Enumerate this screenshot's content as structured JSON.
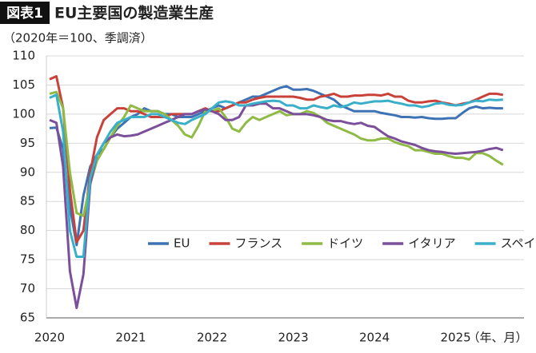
{
  "chart_data": {
    "type": "line",
    "figure_label": "図表1",
    "title": "EU主要国の製造業生産",
    "subtitle": "（2020年＝100、季調済）",
    "x_label": "（年、月）",
    "categories": [
      "2020",
      null,
      null,
      null,
      null,
      null,
      null,
      null,
      null,
      null,
      null,
      null,
      "2021",
      null,
      null,
      null,
      null,
      null,
      null,
      null,
      null,
      null,
      null,
      null,
      "2022",
      null,
      null,
      null,
      null,
      null,
      null,
      null,
      null,
      null,
      null,
      null,
      "2023",
      null,
      null,
      null,
      null,
      null,
      null,
      null,
      null,
      null,
      null,
      null,
      "2024",
      null,
      null,
      null,
      null,
      null,
      null,
      null,
      null,
      null,
      null,
      null,
      "2025",
      null,
      null,
      null,
      null,
      null,
      null,
      null
    ],
    "ylim": [
      65,
      110
    ],
    "yticks": [
      65,
      70,
      75,
      80,
      85,
      90,
      95,
      100,
      105,
      110
    ],
    "grid": true,
    "series": [
      {
        "name": "EU",
        "color": "#3d72b4",
        "values": [
          97.6,
          97.7,
          94,
          84,
          77.5,
          86,
          91,
          93,
          94,
          96,
          97.5,
          98.5,
          99.5,
          100,
          101,
          100.5,
          100.5,
          100,
          100,
          99.5,
          99.5,
          99.5,
          100,
          100.5,
          101,
          101.5,
          101,
          101.5,
          102,
          102.5,
          103,
          103,
          103.5,
          104,
          104.5,
          104.8,
          104.2,
          104.2,
          104.3,
          104,
          103.5,
          103,
          102.5,
          101.5,
          101,
          100.5,
          100.5,
          100.5,
          100.5,
          100.2,
          100,
          99.8,
          99.5,
          99.5,
          99.4,
          99.5,
          99.3,
          99.2,
          99.2,
          99.3,
          99.3,
          100.2,
          101,
          101.3,
          101,
          101.1,
          101,
          101
        ]
      },
      {
        "name": "フランス",
        "color": "#c8423a",
        "values": [
          106,
          106.5,
          101,
          87,
          78,
          80,
          90,
          96,
          99,
          100,
          101,
          101,
          100.5,
          100.5,
          100,
          99.5,
          99.5,
          99.5,
          100,
          100,
          100,
          100,
          100.5,
          101,
          100.5,
          100.5,
          101,
          101.5,
          102,
          102,
          102.5,
          102.8,
          103,
          103,
          103,
          103,
          103,
          102.8,
          102.5,
          102.5,
          103,
          103.2,
          103.5,
          103,
          103,
          103.2,
          103.2,
          103.3,
          103.3,
          103.2,
          103.5,
          103,
          103,
          102.3,
          102,
          102,
          102.2,
          102.3,
          102,
          101.8,
          101.5,
          101.8,
          102,
          102.5,
          103,
          103.5,
          103.5,
          103.3
        ]
      },
      {
        "name": "ドイツ",
        "color": "#8fbb45",
        "values": [
          103.5,
          103.8,
          101,
          90,
          83,
          82.5,
          88,
          92,
          94,
          96,
          98,
          99.5,
          101.5,
          101,
          100.5,
          100.5,
          100.5,
          100,
          99,
          98,
          96.5,
          96,
          98,
          100.5,
          100.5,
          101,
          99.5,
          97.5,
          97,
          98.5,
          99.5,
          99,
          99.5,
          100,
          100.5,
          99.8,
          100,
          100,
          100.5,
          100.2,
          99.5,
          98.5,
          98,
          97.5,
          97,
          96.5,
          95.8,
          95.5,
          95.5,
          95.8,
          95.8,
          95.2,
          94.8,
          94.5,
          93.8,
          93.8,
          93.5,
          93.2,
          93.2,
          92.8,
          92.5,
          92.5,
          92.2,
          93.3,
          93.3,
          92.8,
          92,
          91.3
        ]
      },
      {
        "name": "イタリア",
        "color": "#7b4f9a",
        "values": [
          99,
          98.5,
          91,
          73,
          66.7,
          72.5,
          88,
          93,
          95,
          96,
          96.5,
          96.2,
          96.3,
          96.5,
          97,
          97.5,
          98,
          98.5,
          99,
          99.5,
          100,
          100,
          100.5,
          100.8,
          100.5,
          100,
          99,
          99,
          99.5,
          101.5,
          101.5,
          101.8,
          101.8,
          101,
          101,
          100.5,
          100,
          100,
          100,
          99.8,
          99.5,
          99,
          98.8,
          98.8,
          98.5,
          98.3,
          98.5,
          98,
          97.8,
          97,
          96.2,
          95.8,
          95.3,
          95,
          94.7,
          94.2,
          93.8,
          93.6,
          93.5,
          93.3,
          93.2,
          93.3,
          93.4,
          93.5,
          93.7,
          94,
          94.2,
          93.8
        ]
      },
      {
        "name": "スペイン",
        "color": "#3aafc9",
        "values": [
          102.8,
          103.3,
          97,
          80,
          75.5,
          75.5,
          89,
          93,
          95,
          97,
          98.5,
          99,
          99.5,
          99.5,
          99.5,
          100,
          100,
          99.5,
          99,
          98.5,
          98.3,
          99,
          99.5,
          100,
          101,
          102,
          102.2,
          102,
          101.5,
          101.5,
          101.8,
          102,
          102.2,
          102.3,
          102.2,
          101.5,
          101.5,
          101,
          101,
          101.5,
          101.2,
          101,
          101.5,
          101.2,
          101.5,
          102,
          101.8,
          102,
          102.2,
          102.2,
          102.3,
          102,
          101.8,
          101.5,
          101.5,
          101.2,
          101.4,
          101.8,
          101.9,
          101.6,
          101.5,
          101.6,
          102,
          102.3,
          102.2,
          102.5,
          102.4,
          102.5
        ]
      }
    ]
  }
}
